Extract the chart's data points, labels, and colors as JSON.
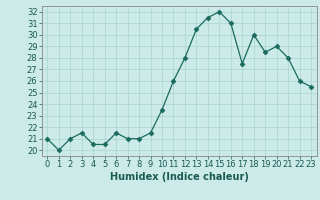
{
  "x": [
    0,
    1,
    2,
    3,
    4,
    5,
    6,
    7,
    8,
    9,
    10,
    11,
    12,
    13,
    14,
    15,
    16,
    17,
    18,
    19,
    20,
    21,
    22,
    23
  ],
  "y": [
    21,
    20,
    21,
    21.5,
    20.5,
    20.5,
    21.5,
    21,
    21,
    21.5,
    23.5,
    26,
    28,
    30.5,
    31.5,
    32,
    31,
    27.5,
    30,
    28.5,
    29,
    28,
    26,
    25.5
  ],
  "line_color": "#1a6b5e",
  "marker": "D",
  "marker_size": 2.5,
  "bg_color": "#cceae7",
  "grid_color": "#aad4d0",
  "xlabel": "Humidex (Indice chaleur)",
  "xlabel_fontsize": 7,
  "tick_fontsize": 6,
  "ylim": [
    19.5,
    32.5
  ],
  "yticks": [
    20,
    21,
    22,
    23,
    24,
    25,
    26,
    27,
    28,
    29,
    30,
    31,
    32
  ],
  "xlim": [
    -0.5,
    23.5
  ],
  "xticks": [
    0,
    1,
    2,
    3,
    4,
    5,
    6,
    7,
    8,
    9,
    10,
    11,
    12,
    13,
    14,
    15,
    16,
    17,
    18,
    19,
    20,
    21,
    22,
    23
  ]
}
